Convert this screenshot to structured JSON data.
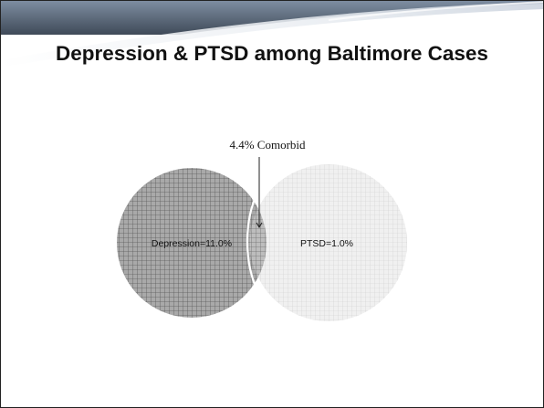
{
  "slide": {
    "title": "Depression & PTSD among Baltimore Cases"
  },
  "venn": {
    "left_set_label": "Depression=11.0%",
    "right_set_label": "PTSD=1.0%",
    "overlap_label": "4.4% Comorbid",
    "colors": {
      "left_fill": "#a9a9a9",
      "left_grid": "#5a5a5a",
      "right_fill": "#f0f0f0",
      "right_grid": "#cfcfcf",
      "overlap_fill": "#bdbdbd",
      "overlap_grid": "#6e6e6e"
    }
  }
}
